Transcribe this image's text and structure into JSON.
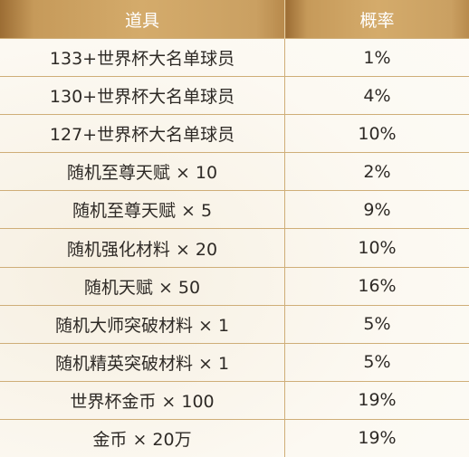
{
  "table": {
    "header": [
      "道具",
      "概率"
    ],
    "rows": [
      [
        "133+世界杯大名单球员",
        "1%"
      ],
      [
        "130+世界杯大名单球员",
        "4%"
      ],
      [
        "127+世界杯大名单球员",
        "10%"
      ],
      [
        "随机至尊天赋 × 10",
        "2%"
      ],
      [
        "随机至尊天赋 × 5",
        "9%"
      ],
      [
        "随机强化材料 × 20",
        "10%"
      ],
      [
        "随机天赋 × 50",
        "16%"
      ],
      [
        "随机大师突破材料 × 1",
        "5%"
      ],
      [
        "随机精英突破材料 × 1",
        "5%"
      ],
      [
        "世界杯金币 × 100",
        "19%"
      ],
      [
        "金币 × 20万",
        "19%"
      ]
    ]
  }
}
